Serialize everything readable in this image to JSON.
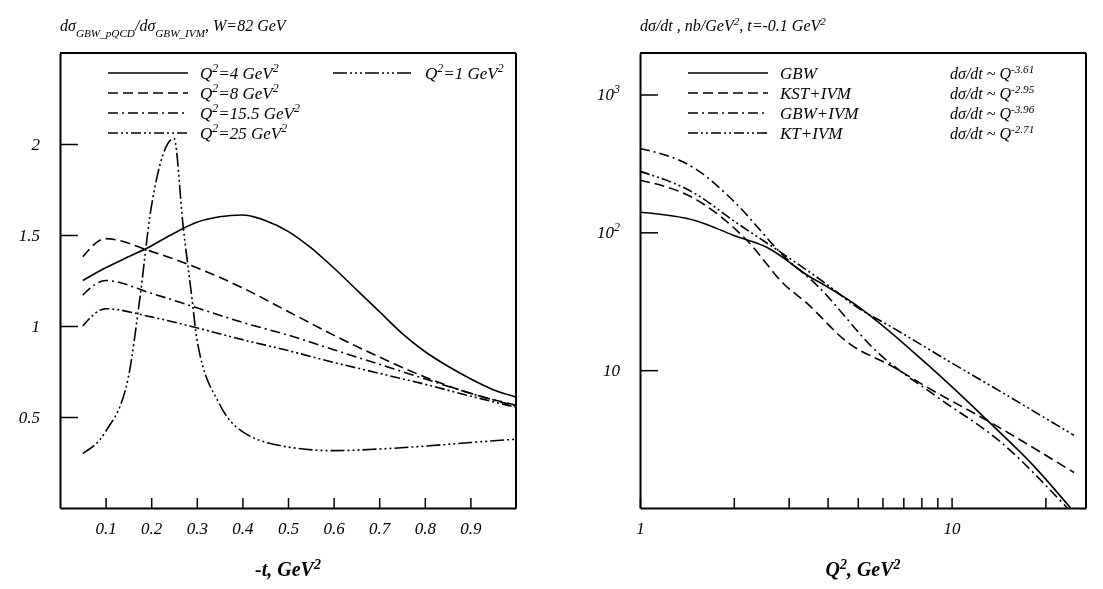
{
  "chart_data": [
    {
      "type": "line",
      "title": "dσ$_{GBW_pQCD}$/dσ$_{GBW_IVM}$, W=82 GeV",
      "xlabel": "-t, GeV$^{2}$",
      "legend": "top",
      "xlim": [
        0,
        1
      ],
      "ylim": [
        0,
        2.5
      ],
      "xticks": [
        0.1,
        0.2,
        0.3,
        0.4,
        0.5,
        0.6,
        0.7,
        0.8,
        0.9
      ],
      "yticks": [
        0.5,
        1,
        1.5,
        2
      ],
      "series": [
        {
          "name": "Q$^{2}$=4 GeV$^{2}$",
          "color": "#000000",
          "line_style": "solid",
          "x": [
            0.05,
            0.1,
            0.15,
            0.2,
            0.25,
            0.3,
            0.35,
            0.4,
            0.45,
            0.5,
            0.55,
            0.6,
            0.65,
            0.7,
            0.75,
            0.8,
            0.85,
            0.9,
            0.95,
            1.0
          ],
          "values": [
            1.25,
            1.32,
            1.38,
            1.44,
            1.51,
            1.57,
            1.6,
            1.61,
            1.58,
            1.52,
            1.43,
            1.32,
            1.2,
            1.08,
            0.96,
            0.86,
            0.78,
            0.71,
            0.65,
            0.61
          ]
        },
        {
          "name": "Q$^{2}$=8 GeV$^{2}$",
          "color": "#000000",
          "line_style": "dashed",
          "x": [
            0.05,
            0.1,
            0.2,
            0.3,
            0.4,
            0.5,
            0.6,
            0.7,
            0.8,
            0.9,
            1.0
          ],
          "values": [
            1.38,
            1.48,
            1.41,
            1.32,
            1.21,
            1.08,
            0.95,
            0.83,
            0.72,
            0.63,
            0.565
          ]
        },
        {
          "name": "Q$^{2}$=15.5 GeV$^{2}$",
          "color": "#000000",
          "line_style": "dashdot",
          "x": [
            0.05,
            0.1,
            0.2,
            0.3,
            0.4,
            0.5,
            0.6,
            0.7,
            0.8,
            0.9,
            1.0
          ],
          "values": [
            1.17,
            1.25,
            1.18,
            1.1,
            1.02,
            0.95,
            0.87,
            0.79,
            0.71,
            0.63,
            0.56
          ]
        },
        {
          "name": "Q$^{2}$=25 GeV$^{2}$",
          "color": "#000000",
          "line_style": "dashdotdot",
          "x": [
            0.05,
            0.1,
            0.2,
            0.3,
            0.4,
            0.5,
            0.6,
            0.7,
            0.8,
            0.9,
            1.0
          ],
          "values": [
            1.0,
            1.095,
            1.05,
            0.99,
            0.925,
            0.865,
            0.8,
            0.74,
            0.68,
            0.615,
            0.553
          ]
        },
        {
          "name": "Q$^{2}$=1 GeV$^{2}$",
          "color": "#000000",
          "line_style": "dashdotdotdot",
          "x": [
            0.05,
            0.1,
            0.15,
            0.175,
            0.2,
            0.25,
            0.27,
            0.29,
            0.3,
            0.35,
            0.4,
            0.5,
            0.6,
            0.7,
            0.8,
            0.9,
            1.0
          ],
          "values": [
            0.3,
            0.42,
            0.72,
            1.15,
            1.65,
            2.03,
            1.55,
            1.14,
            0.93,
            0.57,
            0.42,
            0.335,
            0.315,
            0.324,
            0.34,
            0.36,
            0.378
          ]
        }
      ]
    },
    {
      "type": "line",
      "title": "dσ/dt , nb/GeV$^{2}$,  t=-0.1 GeV$^{2}$",
      "xlabel": "Q$^{2}$, GeV$^{2}$",
      "legend": "top",
      "log": "xy",
      "annotations": [
        "dσ/dt ~ Q$^{-3.61}$",
        "dσ/dt ~ Q$^{-2.95}$",
        "dσ/dt ~ Q$^{-3.96}$",
        "dσ/dt ~ Q$^{-2.71}$"
      ],
      "xlim": [
        1,
        27
      ],
      "ylim": [
        1,
        2000
      ],
      "xticks": [
        1,
        {
          "value": 2,
          "label": null
        },
        {
          "value": 3,
          "label": null
        },
        {
          "value": 4,
          "label": null
        },
        {
          "value": 5,
          "label": null
        },
        {
          "value": 6,
          "label": null
        },
        {
          "value": 7,
          "label": null
        },
        {
          "value": 8,
          "label": null
        },
        {
          "value": 9,
          "label": null
        },
        10,
        {
          "value": 20,
          "label": null
        }
      ],
      "yticks": [
        10,
        {
          "value": 100,
          "label": "10$^{2}$"
        },
        {
          "value": 1000,
          "label": "10$^{3}$"
        }
      ],
      "series": [
        {
          "name": "GBW",
          "color": "#000000",
          "line_style": "solid",
          "x": [
            1,
            1.52,
            2,
            2.55,
            3.59,
            3.89,
            4.8,
            5.63,
            8.36,
            13.1,
            18.5,
            24.1
          ],
          "values": [
            140,
            121,
            95,
            78,
            46,
            41.7,
            31,
            23.7,
            11,
            4.27,
            1.98,
            1.0
          ]
        },
        {
          "name": "KST+IVM",
          "color": "#000000",
          "line_style": "dashed",
          "x": [
            1,
            1.52,
            2.23,
            2.9,
            3.41,
            4.67,
            6.43,
            8.36,
            13.1,
            24.7
          ],
          "values": [
            239,
            172,
            85,
            42,
            31,
            15.7,
            10.7,
            7.5,
            4.27,
            1.81
          ]
        },
        {
          "name": "GBW+IVM",
          "color": "#000000",
          "line_style": "dashdot",
          "x": [
            1,
            1.52,
            2,
            2.9,
            3.68,
            5.78,
            9.07,
            14.2,
            23.5
          ],
          "values": [
            406,
            285,
            168,
            67,
            41.7,
            13.5,
            6.3,
            3.08,
            1.0
          ]
        },
        {
          "name": "KT+IVM",
          "color": "#000000",
          "line_style": "dashdotdot",
          "x": [
            1,
            1.52,
            2,
            2.9,
            3.99,
            4.93,
            6.43,
            10.06,
            14.2,
            24.7
          ],
          "values": [
            277,
            188,
            121,
            69,
            41.7,
            29,
            20.5,
            11.2,
            7.1,
            3.37
          ]
        }
      ]
    }
  ]
}
